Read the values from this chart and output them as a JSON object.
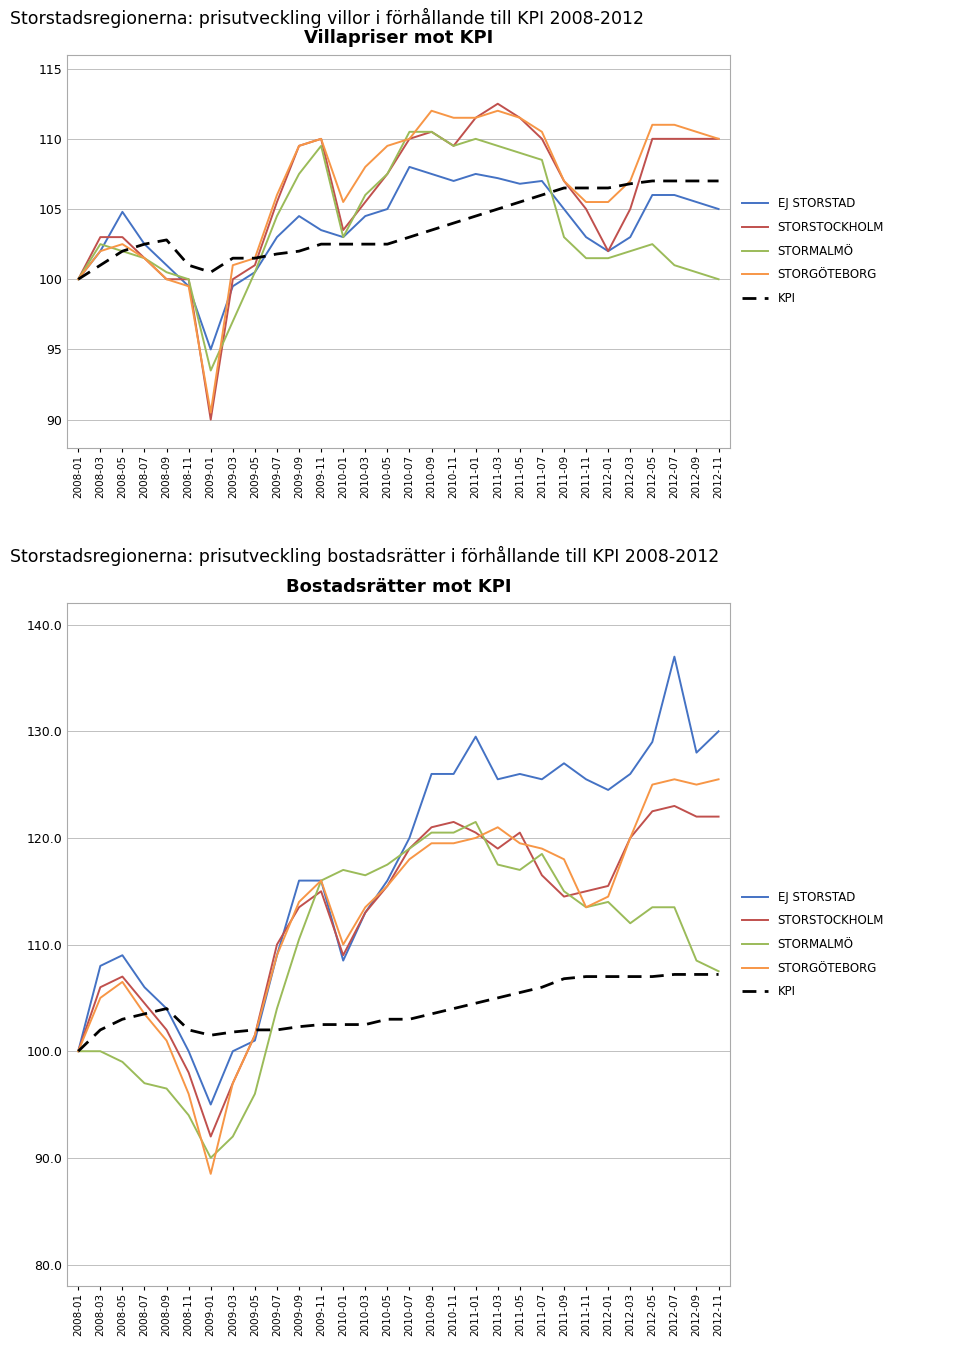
{
  "title1": "Storstadsregionerna: prisutveckling villor i förhållande till KPI 2008-2012",
  "title2": "Storstadsregionerna: prisutveckling bostadsrätter i förhållande till KPI 2008-2012",
  "chart1_title": "Villapriser mot KPI",
  "chart2_title": "Bostadsrätter mot KPI",
  "x_labels": [
    "2008-01",
    "2008-03",
    "2008-05",
    "2008-07",
    "2008-09",
    "2008-11",
    "2009-01",
    "2009-03",
    "2009-05",
    "2009-07",
    "2009-09",
    "2009-11",
    "2010-01",
    "2010-03",
    "2010-05",
    "2010-07",
    "2010-09",
    "2010-11",
    "2011-01",
    "2011-03",
    "2011-05",
    "2011-07",
    "2011-09",
    "2011-11",
    "2012-01",
    "2012-03",
    "2012-05",
    "2012-07",
    "2012-09",
    "2012-11"
  ],
  "colors": {
    "ej_storstad": "#4472C4",
    "storstockholm": "#C0504D",
    "stormalmo": "#9BBB59",
    "storgoteborg": "#F79646",
    "kpi": "#000000"
  },
  "chart1": {
    "ej_storstad": [
      100.0,
      102.0,
      104.8,
      102.5,
      101.0,
      99.5,
      95.0,
      99.5,
      100.5,
      103.0,
      104.5,
      103.5,
      103.0,
      104.5,
      105.0,
      108.0,
      107.5,
      107.0,
      107.5,
      107.2,
      106.8,
      107.0,
      105.0,
      103.0,
      102.0,
      103.0,
      106.0,
      106.0,
      105.5,
      105.0
    ],
    "storstockholm": [
      100.0,
      103.0,
      103.0,
      101.5,
      100.0,
      100.0,
      90.0,
      100.0,
      101.0,
      105.5,
      109.5,
      110.0,
      103.5,
      105.5,
      107.5,
      110.0,
      110.5,
      109.5,
      111.5,
      112.5,
      111.5,
      110.0,
      107.0,
      105.0,
      102.0,
      105.0,
      110.0,
      110.0,
      110.0,
      110.0
    ],
    "stormalmo": [
      100.0,
      102.5,
      102.0,
      101.5,
      100.5,
      100.0,
      93.5,
      97.0,
      100.5,
      104.5,
      107.5,
      109.5,
      103.0,
      106.0,
      107.5,
      110.5,
      110.5,
      109.5,
      110.0,
      109.5,
      109.0,
      108.5,
      103.0,
      101.5,
      101.5,
      102.0,
      102.5,
      101.0,
      100.5,
      100.0
    ],
    "storgoteborg": [
      100.0,
      102.0,
      102.5,
      101.5,
      100.0,
      99.5,
      90.5,
      101.0,
      101.5,
      106.0,
      109.5,
      110.0,
      105.5,
      108.0,
      109.5,
      110.0,
      112.0,
      111.5,
      111.5,
      112.0,
      111.5,
      110.5,
      107.0,
      105.5,
      105.5,
      107.0,
      111.0,
      111.0,
      110.5,
      110.0
    ],
    "kpi": [
      100.0,
      101.0,
      102.0,
      102.5,
      102.8,
      101.0,
      100.5,
      101.5,
      101.5,
      101.8,
      102.0,
      102.5,
      102.5,
      102.5,
      102.5,
      103.0,
      103.5,
      104.0,
      104.5,
      105.0,
      105.5,
      106.0,
      106.5,
      106.5,
      106.5,
      106.8,
      107.0,
      107.0,
      107.0,
      107.0
    ]
  },
  "chart2": {
    "ej_storstad": [
      100.0,
      108.0,
      109.0,
      106.0,
      104.0,
      100.0,
      95.0,
      100.0,
      101.0,
      109.0,
      116.0,
      116.0,
      108.5,
      113.0,
      116.0,
      120.0,
      126.0,
      126.0,
      129.5,
      125.5,
      126.0,
      125.5,
      127.0,
      125.5,
      124.5,
      126.0,
      129.0,
      137.0,
      128.0,
      130.0
    ],
    "storstockholm": [
      100.0,
      106.0,
      107.0,
      104.5,
      102.0,
      98.0,
      92.0,
      97.0,
      101.5,
      110.0,
      113.5,
      115.0,
      109.0,
      113.0,
      115.5,
      119.0,
      121.0,
      121.5,
      120.5,
      119.0,
      120.5,
      116.5,
      114.5,
      115.0,
      115.5,
      120.0,
      122.5,
      123.0,
      122.0,
      122.0
    ],
    "stormalmo": [
      100.0,
      100.0,
      99.0,
      97.0,
      96.5,
      94.0,
      90.0,
      92.0,
      96.0,
      104.0,
      110.5,
      116.0,
      117.0,
      116.5,
      117.5,
      119.0,
      120.5,
      120.5,
      121.5,
      117.5,
      117.0,
      118.5,
      115.0,
      113.5,
      114.0,
      112.0,
      113.5,
      113.5,
      108.5,
      107.5
    ],
    "storgoteborg": [
      100.0,
      105.0,
      106.5,
      103.5,
      101.0,
      96.0,
      88.5,
      97.0,
      101.5,
      109.0,
      114.0,
      116.0,
      110.0,
      113.5,
      115.5,
      118.0,
      119.5,
      119.5,
      120.0,
      121.0,
      119.5,
      119.0,
      118.0,
      113.5,
      114.5,
      120.0,
      125.0,
      125.5,
      125.0,
      125.5
    ],
    "kpi": [
      100.0,
      102.0,
      103.0,
      103.5,
      104.0,
      102.0,
      101.5,
      101.8,
      102.0,
      102.0,
      102.3,
      102.5,
      102.5,
      102.5,
      103.0,
      103.0,
      103.5,
      104.0,
      104.5,
      105.0,
      105.5,
      106.0,
      106.8,
      107.0,
      107.0,
      107.0,
      107.0,
      107.2,
      107.2,
      107.2
    ]
  },
  "chart1_ylim": [
    88,
    116
  ],
  "chart1_yticks": [
    90,
    95,
    100,
    105,
    110,
    115
  ],
  "chart2_ylim": [
    78,
    142
  ],
  "chart2_yticks": [
    80.0,
    90.0,
    100.0,
    110.0,
    120.0,
    130.0,
    140.0
  ],
  "legend_labels": [
    "EJ STORSTAD",
    "STORSTOCKHOLM",
    "STORMALMÖ",
    "STORGÖTEBORG",
    "KPI"
  ],
  "bg_color": "#FFFFFF",
  "chart_bg": "#FFFFFF",
  "grid_color": "#C0C0C0"
}
